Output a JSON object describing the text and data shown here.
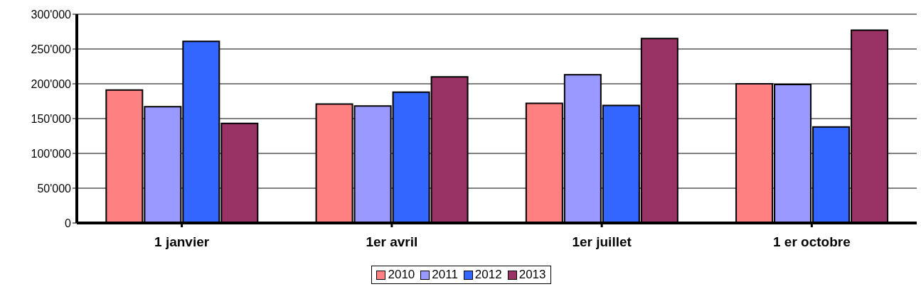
{
  "chart_data": {
    "type": "bar",
    "categories": [
      "1 janvier",
      "1er avril",
      "1er juillet",
      "1 er octobre"
    ],
    "series": [
      {
        "name": "2010",
        "color": "#ff8080",
        "values": [
          191000,
          171000,
          172000,
          200000
        ]
      },
      {
        "name": "2011",
        "color": "#9999ff",
        "values": [
          167000,
          168000,
          213000,
          199000
        ]
      },
      {
        "name": "2012",
        "color": "#3366ff",
        "values": [
          261000,
          188000,
          169000,
          138000
        ]
      },
      {
        "name": "2013",
        "color": "#993366",
        "values": [
          143000,
          210000,
          265000,
          277000
        ]
      }
    ],
    "ylim": [
      0,
      300000
    ],
    "yticks": [
      {
        "value": 0,
        "label": "0"
      },
      {
        "value": 50000,
        "label": "50'000"
      },
      {
        "value": 100000,
        "label": "100'000"
      },
      {
        "value": 150000,
        "label": "150'000"
      },
      {
        "value": 200000,
        "label": "200'000"
      },
      {
        "value": 250000,
        "label": "250'000"
      },
      {
        "value": 300000,
        "label": "300'000"
      }
    ],
    "grid": "y",
    "legend": "bottom"
  }
}
